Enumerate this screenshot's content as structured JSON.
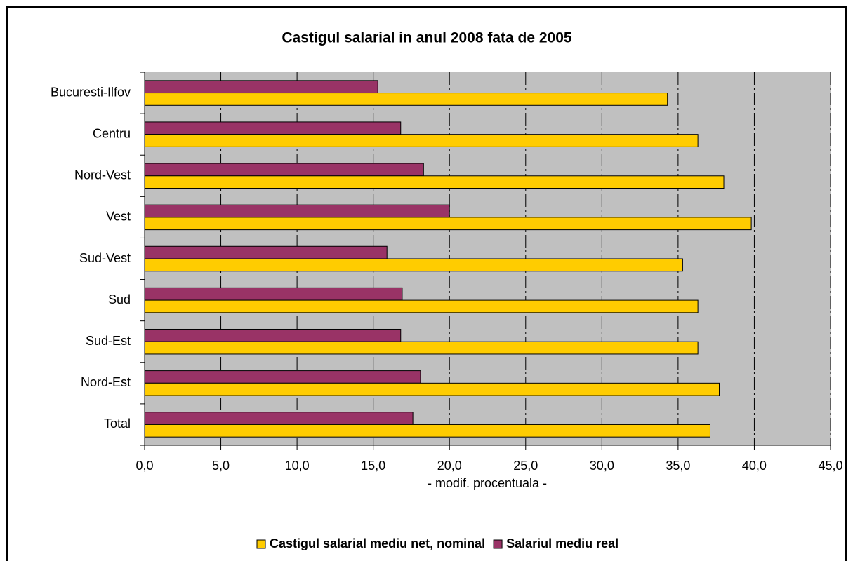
{
  "chart_data": {
    "type": "bar",
    "orientation": "horizontal",
    "title": "Castigul salarial in anul 2008 fata de 2005",
    "x_label": "- modif. procentuala -",
    "categories": [
      "Bucuresti-Ilfov",
      "Centru",
      "Nord-Vest",
      "Vest",
      "Sud-Vest",
      "Sud",
      "Sud-Est",
      "Nord-Est",
      "Total"
    ],
    "series": [
      {
        "name": "Castigul salarial mediu net, nominal",
        "color": "#ffcc00",
        "values": [
          34.3,
          36.3,
          38.0,
          39.8,
          35.3,
          36.3,
          36.3,
          37.7,
          37.1
        ]
      },
      {
        "name": "Salariul mediu real",
        "color": "#993366",
        "values": [
          15.3,
          16.8,
          18.3,
          20.0,
          15.9,
          16.9,
          16.8,
          18.1,
          17.6
        ]
      }
    ],
    "xlim": [
      0,
      45
    ],
    "xticks": [
      {
        "value": 0,
        "label": "0,0"
      },
      {
        "value": 5,
        "label": "5,0"
      },
      {
        "value": 10,
        "label": "10,0"
      },
      {
        "value": 15,
        "label": "15,0"
      },
      {
        "value": 20,
        "label": "20,0"
      },
      {
        "value": 25,
        "label": "25,0"
      },
      {
        "value": 30,
        "label": "30,0"
      },
      {
        "value": 35,
        "label": "35,0"
      },
      {
        "value": 40,
        "label": "40,0"
      },
      {
        "value": 45,
        "label": "45,0"
      }
    ],
    "grid": true,
    "legend": "bottom"
  }
}
